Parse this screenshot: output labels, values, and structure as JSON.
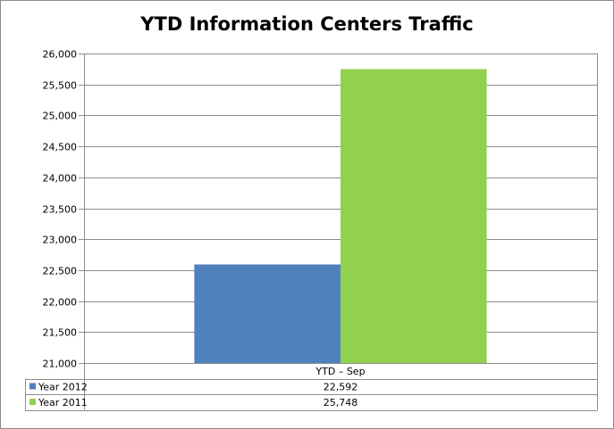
{
  "chart_data": {
    "type": "bar",
    "title": "YTD Information Centers Traffic",
    "xlabel": "",
    "ylabel": "",
    "categories": [
      "YTD – Sep"
    ],
    "series": [
      {
        "name": "Year 2012",
        "values": [
          22592
        ],
        "value_labels": [
          "22,592"
        ],
        "color": "#4f81bd"
      },
      {
        "name": "Year 2011",
        "values": [
          25748
        ],
        "value_labels": [
          "25,748"
        ],
        "color": "#92d050"
      }
    ],
    "ylim": [
      21000,
      26000
    ],
    "yticks": [
      21000,
      21500,
      22000,
      22500,
      23000,
      23500,
      24000,
      24500,
      25000,
      25500,
      26000
    ],
    "ytick_labels": [
      "21,000",
      "21,500",
      "22,000",
      "22,500",
      "23,000",
      "23,500",
      "24,000",
      "24,500",
      "25,000",
      "25,500",
      "26,000"
    ],
    "grid": true,
    "legend": "data-table"
  }
}
